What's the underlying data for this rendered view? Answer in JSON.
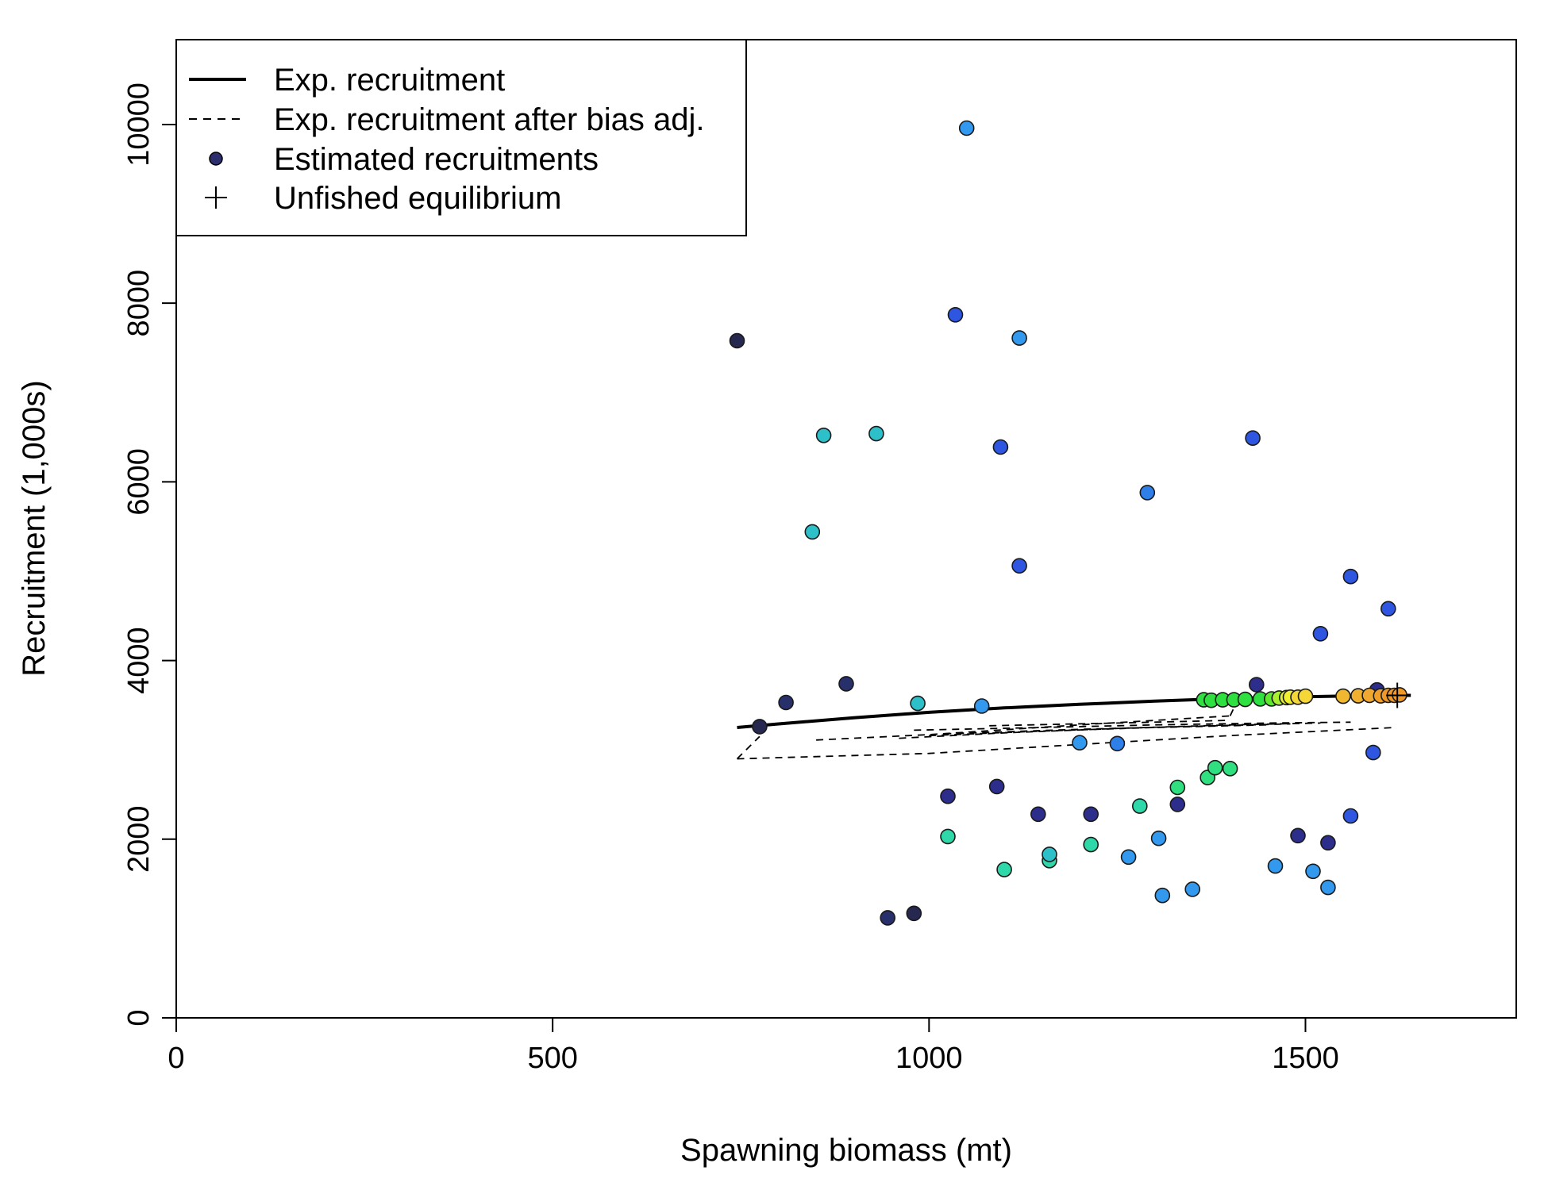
{
  "chart_data": {
    "type": "scatter",
    "xlabel": "Spawning biomass (mt)",
    "ylabel": "Recruitment (1,000s)",
    "xlim": [
      0,
      1780
    ],
    "ylim": [
      0,
      10950
    ],
    "x_ticks": [
      "0",
      "500",
      "1000",
      "1500"
    ],
    "y_ticks": [
      "0",
      "2000",
      "4000",
      "6000",
      "8000",
      "10000"
    ],
    "legend": {
      "position": "top-left",
      "entries": [
        {
          "label": "Exp. recruitment",
          "symbol": "solid-line"
        },
        {
          "label": "Exp. recruitment after bias adj.",
          "symbol": "dashed-line"
        },
        {
          "label": "Estimated recruitments",
          "symbol": "filled-circle"
        },
        {
          "label": "Unfished equilibrium",
          "symbol": "plus"
        }
      ]
    },
    "exp_recruitment": {
      "x": [
        745,
        800,
        900,
        1000,
        1100,
        1200,
        1300,
        1400,
        1500,
        1600,
        1620,
        1640
      ],
      "y": [
        3250,
        3290,
        3360,
        3420,
        3470,
        3510,
        3545,
        3575,
        3595,
        3610,
        3610,
        3610
      ]
    },
    "bias_adjusted": [
      {
        "x": [
          745,
          1000,
          1200,
          1400,
          1620
        ],
        "y": [
          2900,
          2960,
          3060,
          3160,
          3250
        ]
      },
      {
        "x": [
          745,
          775
        ],
        "y": [
          2900,
          3150
        ]
      },
      {
        "x": [
          850,
          1000,
          1200,
          1400
        ],
        "y": [
          3110,
          3170,
          3280,
          3380
        ]
      },
      {
        "x": [
          960,
          1100,
          1250,
          1400,
          1520
        ],
        "y": [
          3130,
          3190,
          3240,
          3280,
          3300
        ]
      },
      {
        "x": [
          980,
          1150,
          1300,
          1450,
          1560
        ],
        "y": [
          3220,
          3250,
          3280,
          3300,
          3310
        ]
      },
      {
        "x": [
          1020,
          1200,
          1380,
          1480
        ],
        "y": [
          3180,
          3230,
          3270,
          3290
        ]
      },
      {
        "x": [
          1080,
          1250,
          1400
        ],
        "y": [
          3270,
          3300,
          3330
        ]
      },
      {
        "x": [
          1000,
          1150,
          1300,
          1450
        ],
        "y": [
          3160,
          3210,
          3250,
          3280
        ]
      },
      {
        "x": [
          1400,
          1410
        ],
        "y": [
          3380,
          3560
        ]
      }
    ],
    "unfished_equilibrium": {
      "x": 1622,
      "y": 3610
    },
    "estimated_recruitments": {
      "points": [
        {
          "x": 745,
          "y": 7580,
          "color": "#26284f"
        },
        {
          "x": 775,
          "y": 3260,
          "color": "#26284f"
        },
        {
          "x": 810,
          "y": 3530,
          "color": "#27306a"
        },
        {
          "x": 890,
          "y": 3740,
          "color": "#27306a"
        },
        {
          "x": 945,
          "y": 1120,
          "color": "#27306a"
        },
        {
          "x": 980,
          "y": 1170,
          "color": "#26284f"
        },
        {
          "x": 1025,
          "y": 2480,
          "color": "#2d2e8c"
        },
        {
          "x": 1090,
          "y": 2590,
          "color": "#2d2e8c"
        },
        {
          "x": 1145,
          "y": 2280,
          "color": "#2d2e8c"
        },
        {
          "x": 1215,
          "y": 2280,
          "color": "#2d2e8c"
        },
        {
          "x": 1330,
          "y": 2390,
          "color": "#2d2e8c"
        },
        {
          "x": 1435,
          "y": 3730,
          "color": "#2d2e8c"
        },
        {
          "x": 1490,
          "y": 2040,
          "color": "#2d2e8c"
        },
        {
          "x": 1530,
          "y": 1960,
          "color": "#2d2e8c"
        },
        {
          "x": 1595,
          "y": 3670,
          "color": "#2d2e8c"
        },
        {
          "x": 1035,
          "y": 7870,
          "color": "#2f56e0"
        },
        {
          "x": 1095,
          "y": 6390,
          "color": "#2f56e0"
        },
        {
          "x": 1120,
          "y": 5060,
          "color": "#2f56e0"
        },
        {
          "x": 1430,
          "y": 6490,
          "color": "#2f56e0"
        },
        {
          "x": 1560,
          "y": 4940,
          "color": "#2f56e0"
        },
        {
          "x": 1520,
          "y": 4300,
          "color": "#2f56e0"
        },
        {
          "x": 1610,
          "y": 4580,
          "color": "#2f56e0"
        },
        {
          "x": 1590,
          "y": 2970,
          "color": "#2f56e0"
        },
        {
          "x": 1560,
          "y": 2260,
          "color": "#2f56e0"
        },
        {
          "x": 1050,
          "y": 9960,
          "color": "#3399ee"
        },
        {
          "x": 1120,
          "y": 7610,
          "color": "#3399ee"
        },
        {
          "x": 1290,
          "y": 5880,
          "color": "#2f7fe8"
        },
        {
          "x": 1070,
          "y": 3490,
          "color": "#3399ee"
        },
        {
          "x": 1200,
          "y": 3080,
          "color": "#3399ee"
        },
        {
          "x": 1250,
          "y": 3070,
          "color": "#2f7fe8"
        },
        {
          "x": 1265,
          "y": 1800,
          "color": "#3399ee"
        },
        {
          "x": 1305,
          "y": 2010,
          "color": "#3399ee"
        },
        {
          "x": 1310,
          "y": 1370,
          "color": "#3399ee"
        },
        {
          "x": 1350,
          "y": 1440,
          "color": "#3399ee"
        },
        {
          "x": 1460,
          "y": 1700,
          "color": "#3399ee"
        },
        {
          "x": 1510,
          "y": 1640,
          "color": "#3399ee"
        },
        {
          "x": 1530,
          "y": 1460,
          "color": "#3399ee"
        },
        {
          "x": 860,
          "y": 6520,
          "color": "#2ec0c8"
        },
        {
          "x": 930,
          "y": 6540,
          "color": "#2ec0c8"
        },
        {
          "x": 845,
          "y": 5440,
          "color": "#2ec0c8"
        },
        {
          "x": 985,
          "y": 3520,
          "color": "#2ec0c8"
        },
        {
          "x": 1025,
          "y": 2030,
          "color": "#2ed8a8"
        },
        {
          "x": 1100,
          "y": 1660,
          "color": "#2ed8a8"
        },
        {
          "x": 1160,
          "y": 1760,
          "color": "#2ed8a8"
        },
        {
          "x": 1160,
          "y": 1830,
          "color": "#2ec0c8"
        },
        {
          "x": 1215,
          "y": 1940,
          "color": "#2ed8a8"
        },
        {
          "x": 1280,
          "y": 2370,
          "color": "#2ed8a8"
        },
        {
          "x": 1330,
          "y": 2580,
          "color": "#30e080"
        },
        {
          "x": 1370,
          "y": 2690,
          "color": "#30e080"
        },
        {
          "x": 1380,
          "y": 2800,
          "color": "#30e080"
        },
        {
          "x": 1400,
          "y": 2790,
          "color": "#30e080"
        },
        {
          "x": 1365,
          "y": 3560,
          "color": "#2ee040"
        },
        {
          "x": 1375,
          "y": 3555,
          "color": "#2ee040"
        },
        {
          "x": 1390,
          "y": 3560,
          "color": "#2ee040"
        },
        {
          "x": 1405,
          "y": 3560,
          "color": "#2ee040"
        },
        {
          "x": 1420,
          "y": 3565,
          "color": "#2ee040"
        },
        {
          "x": 1440,
          "y": 3570,
          "color": "#2ee040"
        },
        {
          "x": 1455,
          "y": 3570,
          "color": "#5ee830"
        },
        {
          "x": 1465,
          "y": 3580,
          "color": "#a8f030"
        },
        {
          "x": 1475,
          "y": 3585,
          "color": "#e0f030"
        },
        {
          "x": 1480,
          "y": 3590,
          "color": "#f0f030"
        },
        {
          "x": 1490,
          "y": 3590,
          "color": "#f5d838"
        },
        {
          "x": 1500,
          "y": 3600,
          "color": "#f5d838"
        },
        {
          "x": 1550,
          "y": 3600,
          "color": "#f0b830"
        },
        {
          "x": 1570,
          "y": 3605,
          "color": "#f0b030"
        },
        {
          "x": 1585,
          "y": 3610,
          "color": "#f0a830"
        },
        {
          "x": 1600,
          "y": 3605,
          "color": "#f0a028"
        },
        {
          "x": 1610,
          "y": 3610,
          "color": "#f09828"
        },
        {
          "x": 1618,
          "y": 3610,
          "color": "#f09828"
        },
        {
          "x": 1625,
          "y": 3615,
          "color": "#f09828"
        }
      ]
    }
  }
}
